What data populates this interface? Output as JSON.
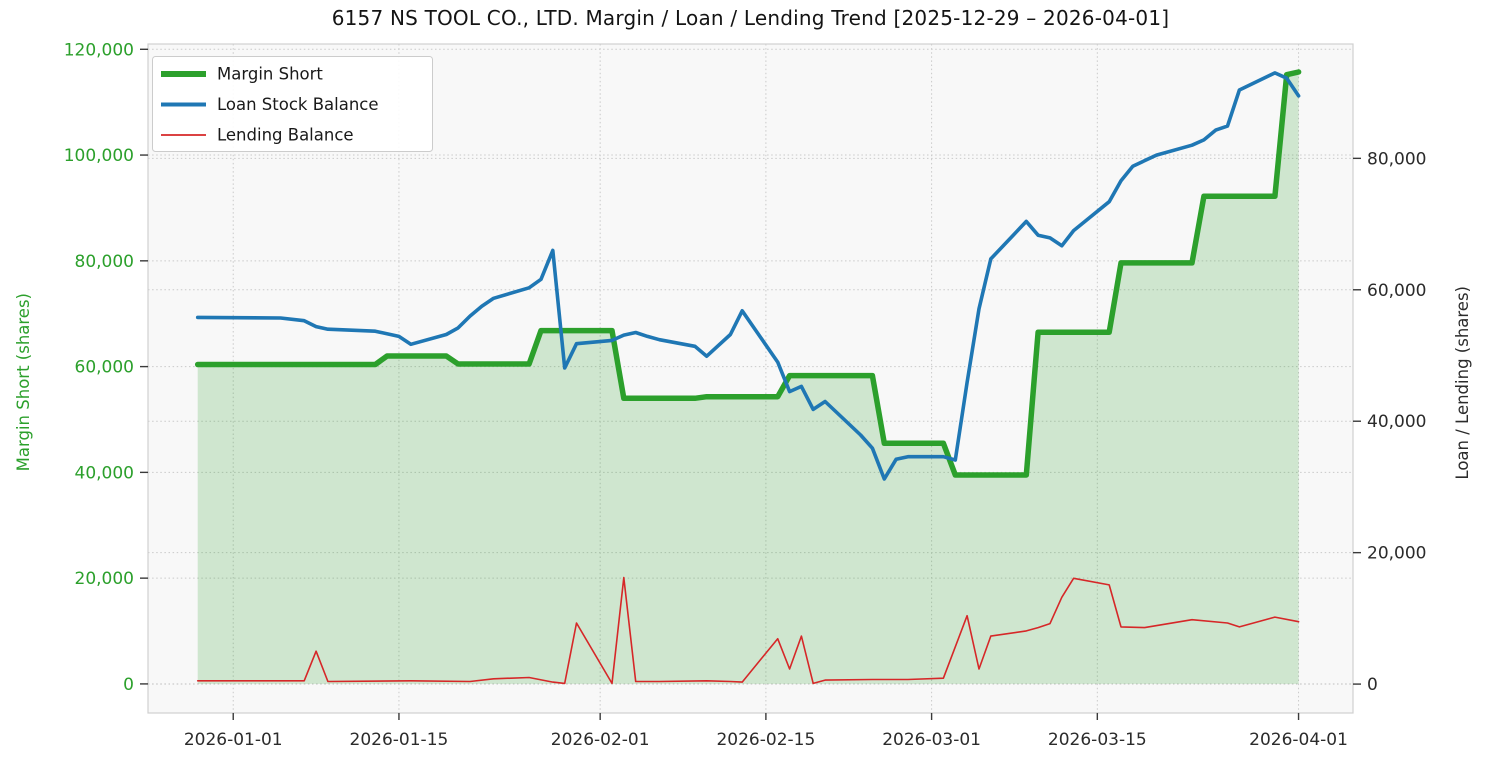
{
  "title": "6157 NS TOOL CO., LTD. Margin / Loan / Lending Trend [2025-12-29 – 2026-04-01]",
  "legend": {
    "items": [
      {
        "label": "Margin Short",
        "color": "#2ca02c",
        "line_width": 6
      },
      {
        "label": "Loan Stock Balance",
        "color": "#1f77b4",
        "line_width": 4
      },
      {
        "label": "Lending Balance",
        "color": "#d62728",
        "line_width": 1.8
      }
    ]
  },
  "axes": {
    "left": {
      "label": "Margin Short (shares)",
      "color": "#2ca02c",
      "ticks": [
        0,
        20000,
        40000,
        60000,
        80000,
        100000,
        120000
      ]
    },
    "right": {
      "label": "Loan / Lending (shares)",
      "color": "#2b2b2b",
      "ticks": [
        0,
        20000,
        40000,
        60000,
        80000
      ]
    },
    "x": {
      "ticks": [
        "2026-01-01",
        "2026-01-15",
        "2026-02-01",
        "2026-02-15",
        "2026-03-01",
        "2026-03-15",
        "2026-04-01"
      ]
    }
  },
  "chart_data": {
    "type": "line",
    "title": "6157 NS TOOL CO., LTD. Margin / Loan / Lending Trend [2025-12-29 – 2026-04-01]",
    "x_start": "2025-12-29",
    "x_end": "2026-04-01",
    "grid": true,
    "legend_position": "upper-left",
    "left_ylim": [
      -5500,
      121000
    ],
    "right_ylim": [
      -4400,
      97400
    ],
    "xlim_days": [
      -4.2,
      97.6
    ],
    "series": [
      {
        "name": "Margin Short",
        "axis": "left",
        "color": "#2ca02c",
        "line_width": 5.5,
        "fill": true,
        "fill_color": "rgba(44,160,44,0.20)",
        "points": [
          [
            "2025-12-29",
            60400
          ],
          [
            "2026-01-13",
            60400
          ],
          [
            "2026-01-14",
            62000
          ],
          [
            "2026-01-19",
            62000
          ],
          [
            "2026-01-20",
            60500
          ],
          [
            "2026-01-26",
            60500
          ],
          [
            "2026-01-27",
            66800
          ],
          [
            "2026-02-02",
            66800
          ],
          [
            "2026-02-03",
            54000
          ],
          [
            "2026-02-09",
            54000
          ],
          [
            "2026-02-10",
            54300
          ],
          [
            "2026-02-16",
            54300
          ],
          [
            "2026-02-17",
            58300
          ],
          [
            "2026-02-24",
            58300
          ],
          [
            "2026-02-25",
            45500
          ],
          [
            "2026-03-02",
            45500
          ],
          [
            "2026-03-03",
            39500
          ],
          [
            "2026-03-09",
            39500
          ],
          [
            "2026-03-10",
            66500
          ],
          [
            "2026-03-16",
            66500
          ],
          [
            "2026-03-17",
            79600
          ],
          [
            "2026-03-23",
            79600
          ],
          [
            "2026-03-24",
            92200
          ],
          [
            "2026-03-30",
            92200
          ],
          [
            "2026-03-31",
            115200
          ],
          [
            "2026-04-01",
            115700
          ]
        ]
      },
      {
        "name": "Loan Stock Balance",
        "axis": "right",
        "color": "#1f77b4",
        "line_width": 3.6,
        "fill": false,
        "points": [
          [
            "2025-12-29",
            55800
          ],
          [
            "2026-01-05",
            55700
          ],
          [
            "2026-01-07",
            55300
          ],
          [
            "2026-01-08",
            54400
          ],
          [
            "2026-01-09",
            54000
          ],
          [
            "2026-01-13",
            53700
          ],
          [
            "2026-01-15",
            52900
          ],
          [
            "2026-01-16",
            51700
          ],
          [
            "2026-01-19",
            53200
          ],
          [
            "2026-01-20",
            54200
          ],
          [
            "2026-01-21",
            56000
          ],
          [
            "2026-01-22",
            57500
          ],
          [
            "2026-01-23",
            58700
          ],
          [
            "2026-01-26",
            60300
          ],
          [
            "2026-01-27",
            61600
          ],
          [
            "2026-01-28",
            66000
          ],
          [
            "2026-01-29",
            48100
          ],
          [
            "2026-01-30",
            51800
          ],
          [
            "2026-02-02",
            52300
          ],
          [
            "2026-02-03",
            53100
          ],
          [
            "2026-02-04",
            53500
          ],
          [
            "2026-02-05",
            52900
          ],
          [
            "2026-02-06",
            52400
          ],
          [
            "2026-02-09",
            51400
          ],
          [
            "2026-02-10",
            49900
          ],
          [
            "2026-02-12",
            53200
          ],
          [
            "2026-02-13",
            56800
          ],
          [
            "2026-02-16",
            49000
          ],
          [
            "2026-02-17",
            44500
          ],
          [
            "2026-02-18",
            45300
          ],
          [
            "2026-02-19",
            41800
          ],
          [
            "2026-02-20",
            43000
          ],
          [
            "2026-02-23",
            37900
          ],
          [
            "2026-02-24",
            35900
          ],
          [
            "2026-02-25",
            31200
          ],
          [
            "2026-02-26",
            34200
          ],
          [
            "2026-02-27",
            34600
          ],
          [
            "2026-03-02",
            34600
          ],
          [
            "2026-03-03",
            34100
          ],
          [
            "2026-03-04",
            45900
          ],
          [
            "2026-03-05",
            57100
          ],
          [
            "2026-03-06",
            64700
          ],
          [
            "2026-03-09",
            70400
          ],
          [
            "2026-03-10",
            68300
          ],
          [
            "2026-03-11",
            67900
          ],
          [
            "2026-03-12",
            66700
          ],
          [
            "2026-03-13",
            69000
          ],
          [
            "2026-03-16",
            73400
          ],
          [
            "2026-03-17",
            76600
          ],
          [
            "2026-03-18",
            78800
          ],
          [
            "2026-03-20",
            80500
          ],
          [
            "2026-03-23",
            82000
          ],
          [
            "2026-03-24",
            82800
          ],
          [
            "2026-03-25",
            84300
          ],
          [
            "2026-03-26",
            84900
          ],
          [
            "2026-03-27",
            90400
          ],
          [
            "2026-03-30",
            93000
          ],
          [
            "2026-03-31",
            92200
          ],
          [
            "2026-04-01",
            89500
          ]
        ]
      },
      {
        "name": "Lending Balance",
        "axis": "right",
        "color": "#d62728",
        "line_width": 1.6,
        "fill": false,
        "points": [
          [
            "2025-12-29",
            500
          ],
          [
            "2026-01-07",
            500
          ],
          [
            "2026-01-08",
            5000
          ],
          [
            "2026-01-09",
            400
          ],
          [
            "2026-01-16",
            500
          ],
          [
            "2026-01-21",
            400
          ],
          [
            "2026-01-23",
            800
          ],
          [
            "2026-01-26",
            1000
          ],
          [
            "2026-01-28",
            300
          ],
          [
            "2026-01-29",
            100
          ],
          [
            "2026-01-30",
            9300
          ],
          [
            "2026-02-02",
            100
          ],
          [
            "2026-02-03",
            16200
          ],
          [
            "2026-02-04",
            400
          ],
          [
            "2026-02-06",
            400
          ],
          [
            "2026-02-10",
            500
          ],
          [
            "2026-02-12",
            400
          ],
          [
            "2026-02-13",
            300
          ],
          [
            "2026-02-16",
            6900
          ],
          [
            "2026-02-17",
            2300
          ],
          [
            "2026-02-18",
            7300
          ],
          [
            "2026-02-19",
            100
          ],
          [
            "2026-02-20",
            600
          ],
          [
            "2026-02-24",
            700
          ],
          [
            "2026-02-27",
            700
          ],
          [
            "2026-03-02",
            900
          ],
          [
            "2026-03-04",
            10400
          ],
          [
            "2026-03-05",
            2300
          ],
          [
            "2026-03-06",
            7300
          ],
          [
            "2026-03-09",
            8100
          ],
          [
            "2026-03-10",
            8600
          ],
          [
            "2026-03-11",
            9200
          ],
          [
            "2026-03-12",
            13200
          ],
          [
            "2026-03-13",
            16100
          ],
          [
            "2026-03-16",
            15100
          ],
          [
            "2026-03-17",
            8700
          ],
          [
            "2026-03-19",
            8600
          ],
          [
            "2026-03-23",
            9800
          ],
          [
            "2026-03-26",
            9300
          ],
          [
            "2026-03-27",
            8700
          ],
          [
            "2026-03-30",
            10200
          ],
          [
            "2026-04-01",
            9500
          ]
        ]
      }
    ]
  }
}
